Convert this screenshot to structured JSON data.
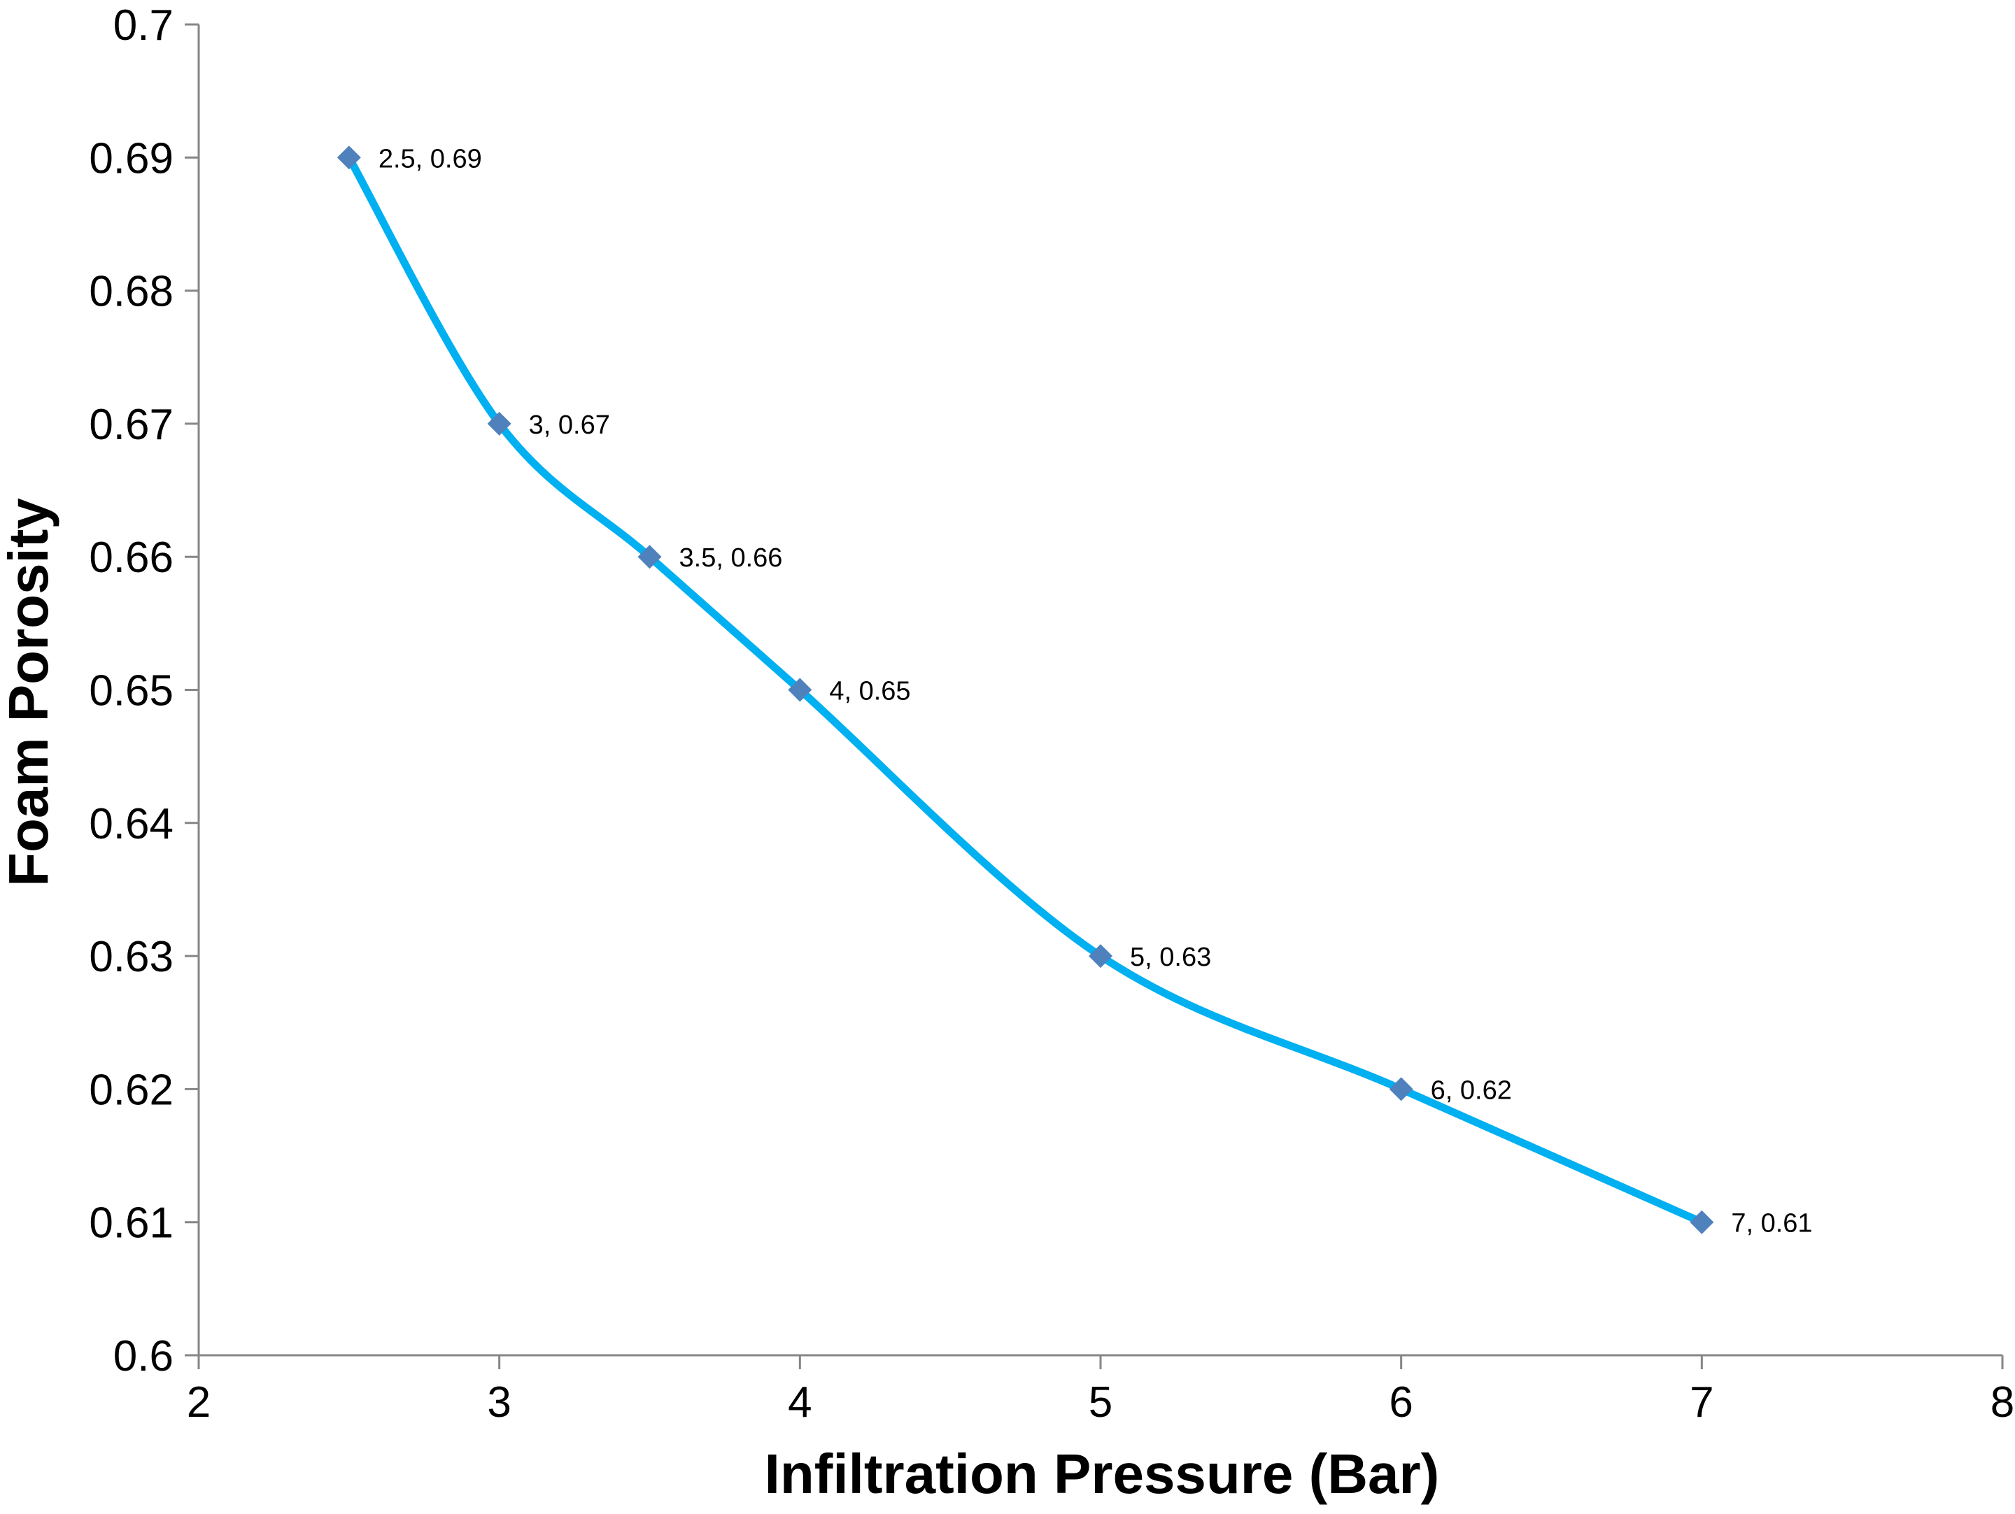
{
  "chart_data": {
    "type": "scatter",
    "title": "",
    "xlabel": "Infiltration Pressure (Bar)",
    "ylabel": "Foam Porosity",
    "xlim": [
      2,
      8
    ],
    "ylim": [
      0.6,
      0.7
    ],
    "x_ticks": [
      "2",
      "3",
      "4",
      "5",
      "6",
      "7",
      "8"
    ],
    "y_ticks": [
      "0.6",
      "0.61",
      "0.62",
      "0.63",
      "0.64",
      "0.65",
      "0.66",
      "0.67",
      "0.68",
      "0.69",
      "0.7"
    ],
    "grid": false,
    "legend": "none",
    "line_style": "smoothed",
    "colors": {
      "line": "#00b0f0",
      "marker": "#4f81bd",
      "axis": "#868686"
    },
    "series": [
      {
        "x": [
          2.5,
          3,
          3.5,
          4,
          5,
          6,
          7
        ],
        "y": [
          0.69,
          0.67,
          0.66,
          0.65,
          0.63,
          0.62,
          0.61
        ],
        "labels": [
          "2.5, 0.69",
          "3, 0.67",
          "3.5, 0.66",
          "4, 0.65",
          "5, 0.63",
          "6, 0.62",
          "7, 0.61"
        ]
      }
    ]
  }
}
